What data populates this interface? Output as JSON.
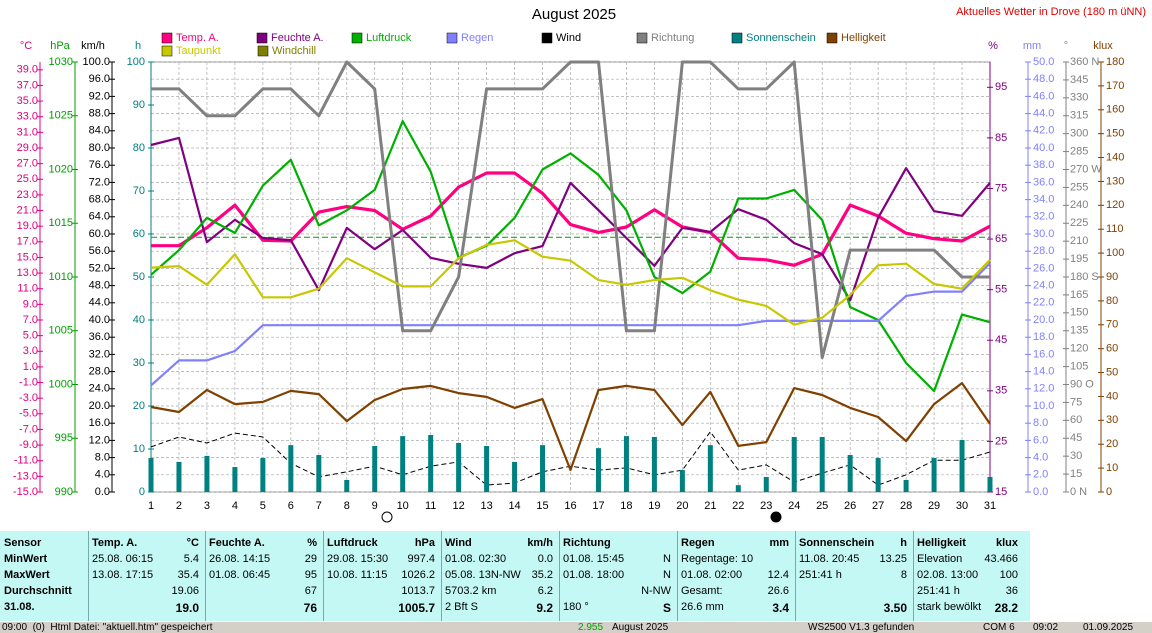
{
  "chart_data": {
    "type": "line",
    "title": "August 2025",
    "subtitle": "Aktuelles Wetter in Drove (180 m üNN)",
    "x": [
      1,
      2,
      3,
      4,
      5,
      6,
      7,
      8,
      9,
      10,
      11,
      12,
      13,
      14,
      15,
      16,
      17,
      18,
      19,
      20,
      21,
      22,
      23,
      24,
      25,
      26,
      27,
      28,
      29,
      30,
      31
    ],
    "xlim": [
      1,
      31
    ],
    "grid": true,
    "axes": [
      {
        "label": "°C",
        "color": "#e0007f",
        "lim": [
          -15,
          40
        ],
        "ticks": [
          {
            "value": 39,
            "label": "39.0"
          },
          {
            "value": 37,
            "label": "37.0"
          },
          {
            "value": 35,
            "label": "35.0"
          },
          {
            "value": 33,
            "label": "33.0"
          },
          {
            "value": 31,
            "label": "31.0"
          },
          {
            "value": 29,
            "label": "29.0"
          },
          {
            "value": 27,
            "label": "27.0"
          },
          {
            "value": 25,
            "label": "25.0"
          },
          {
            "value": 23,
            "label": "23.0"
          },
          {
            "value": 21,
            "label": "21.0"
          },
          {
            "value": 19,
            "label": "19.0"
          },
          {
            "value": 17,
            "label": "17.0"
          },
          {
            "value": 15,
            "label": "15.0"
          },
          {
            "value": 13,
            "label": "13.0"
          },
          {
            "value": 11,
            "label": "11.0"
          },
          {
            "value": 9,
            "label": "9.0"
          },
          {
            "value": 7,
            "label": "7.0"
          },
          {
            "value": 5,
            "label": "5.0"
          },
          {
            "value": 3,
            "label": "3.0"
          },
          {
            "value": 1,
            "label": "1.0"
          },
          {
            "value": -1,
            "label": "-1.0"
          },
          {
            "value": -3,
            "label": "-3.0"
          },
          {
            "value": -5,
            "label": "-5.0"
          },
          {
            "value": -7,
            "label": "-7.0"
          },
          {
            "value": -9,
            "label": "-9.0"
          },
          {
            "value": -11,
            "label": "-11.0"
          },
          {
            "value": -13,
            "label": "-13.0"
          },
          {
            "value": -15,
            "label": "-15.0"
          }
        ]
      },
      {
        "label": "hPa",
        "color": "#00a000",
        "lim": [
          990,
          1030
        ],
        "ticks": [
          1030,
          1025,
          1020,
          1015,
          1010,
          1005,
          1000,
          995,
          990
        ]
      },
      {
        "label": "km/h",
        "color": "#000000",
        "lim": [
          0,
          100
        ],
        "ticks": [
          {
            "value": 100,
            "label": "100.0"
          },
          {
            "value": 96,
            "label": "96.0"
          },
          {
            "value": 92,
            "label": "92.0"
          },
          {
            "value": 88,
            "label": "88.0"
          },
          {
            "value": 84,
            "label": "84.0"
          },
          {
            "value": 80,
            "label": "80.0"
          },
          {
            "value": 76,
            "label": "76.0"
          },
          {
            "value": 72,
            "label": "72.0"
          },
          {
            "value": 68,
            "label": "68.0"
          },
          {
            "value": 64,
            "label": "64.0"
          },
          {
            "value": 60,
            "label": "60.0"
          },
          {
            "value": 56,
            "label": "56.0"
          },
          {
            "value": 52,
            "label": "52.0"
          },
          {
            "value": 48,
            "label": "48.0"
          },
          {
            "value": 44,
            "label": "44.0"
          },
          {
            "value": 40,
            "label": "40.0"
          },
          {
            "value": 36,
            "label": "36.0"
          },
          {
            "value": 32,
            "label": "32.0"
          },
          {
            "value": 28,
            "label": "28.0"
          },
          {
            "value": 24,
            "label": "24.0"
          },
          {
            "value": 20,
            "label": "20.0"
          },
          {
            "value": 16,
            "label": "16.0"
          },
          {
            "value": 12,
            "label": "12.0"
          },
          {
            "value": 8,
            "label": "8.0"
          },
          {
            "value": 4,
            "label": "4.0"
          },
          {
            "value": 0,
            "label": "0.0"
          }
        ]
      },
      {
        "label": "h",
        "color": "#008080",
        "lim": [
          0,
          100
        ],
        "ticks": [
          100,
          90,
          80,
          70,
          60,
          50,
          40,
          30,
          20,
          10,
          0
        ]
      },
      {
        "label": "%",
        "color": "#800080",
        "lim": [
          15,
          100
        ],
        "ticks": [
          95,
          85,
          75,
          65,
          55,
          45,
          35,
          25,
          15
        ]
      },
      {
        "label": "mm",
        "color": "#8080ff",
        "lim": [
          0,
          50
        ],
        "ticks": [
          {
            "value": 50,
            "label": "50.0"
          },
          {
            "value": 48,
            "label": "48.0"
          },
          {
            "value": 46,
            "label": "46.0"
          },
          {
            "value": 44,
            "label": "44.0"
          },
          {
            "value": 42,
            "label": "42.0"
          },
          {
            "value": 40,
            "label": "40.0"
          },
          {
            "value": 38,
            "label": "38.0"
          },
          {
            "value": 36,
            "label": "36.0"
          },
          {
            "value": 34,
            "label": "34.0"
          },
          {
            "value": 32,
            "label": "32.0"
          },
          {
            "value": 30,
            "label": "30.0"
          },
          {
            "value": 28,
            "label": "28.0"
          },
          {
            "value": 26,
            "label": "26.0"
          },
          {
            "value": 24,
            "label": "24.0"
          },
          {
            "value": 22,
            "label": "22.0"
          },
          {
            "value": 20,
            "label": "20.0"
          },
          {
            "value": 18,
            "label": "18.0"
          },
          {
            "value": 16,
            "label": "16.0"
          },
          {
            "value": 14,
            "label": "14.0"
          },
          {
            "value": 12,
            "label": "12.0"
          },
          {
            "value": 10,
            "label": "10.0"
          },
          {
            "value": 8,
            "label": "8.0"
          },
          {
            "value": 6,
            "label": "6.0"
          },
          {
            "value": 4,
            "label": "4.0"
          },
          {
            "value": 2,
            "label": "2.0"
          },
          {
            "value": 0,
            "label": "0.0"
          }
        ]
      },
      {
        "label": "°",
        "color": "#808080",
        "lim": [
          0,
          360
        ],
        "ticks": [
          {
            "value": 360,
            "label": "360 N"
          },
          345,
          330,
          315,
          300,
          285,
          {
            "value": 270,
            "label": "270 W"
          },
          255,
          240,
          225,
          210,
          195,
          {
            "value": 180,
            "label": "180 S"
          },
          165,
          150,
          135,
          120,
          105,
          {
            "value": 90,
            "label": "90 O"
          },
          75,
          60,
          45,
          30,
          15,
          {
            "value": 0,
            "label": "0 N"
          }
        ]
      },
      {
        "label": "klux",
        "color": "#804000",
        "lim": [
          0,
          180
        ],
        "ticks": [
          180,
          170,
          160,
          150,
          140,
          130,
          120,
          110,
          100,
          90,
          80,
          70,
          60,
          50,
          40,
          30,
          20,
          10,
          0
        ]
      }
    ],
    "series": [
      {
        "name": "Temp. A.",
        "color": "#ff0080",
        "axis": 0,
        "style": "line",
        "values": [
          16.5,
          16.5,
          18.8,
          21.7,
          17.2,
          17.1,
          20.8,
          21.5,
          21.0,
          18.6,
          20.3,
          24.0,
          25.8,
          25.8,
          23.2,
          19.2,
          18.2,
          18.9,
          21.1,
          18.9,
          18.2,
          14.9,
          14.7,
          14.0,
          15.4,
          21.7,
          20.3,
          18.1,
          17.4,
          17.1,
          19.0
        ]
      },
      {
        "name": "Feuchte A.",
        "color": "#800080",
        "axis": 4,
        "style": "line",
        "values": [
          83.6,
          85.0,
          64.4,
          68.8,
          65.2,
          64.8,
          54.9,
          67.2,
          63.0,
          66.8,
          61.3,
          60.1,
          59.3,
          62.2,
          63.6,
          76.1,
          70.7,
          65.2,
          59.7,
          67.2,
          66.4,
          70.9,
          68.8,
          64.2,
          62.0,
          52.9,
          69.2,
          79.0,
          70.5,
          69.6,
          76.1
        ]
      },
      {
        "name": "Luftdruck",
        "color": "#00b000",
        "axis": 1,
        "style": "line",
        "values": [
          1010.2,
          1012.5,
          1015.5,
          1014.1,
          1018.5,
          1020.9,
          1014.8,
          1016.2,
          1018.1,
          1024.5,
          1019.8,
          1011.8,
          1012.9,
          1015.5,
          1020.0,
          1021.5,
          1019.5,
          1016.2,
          1010.0,
          1008.5,
          1010.5,
          1017.3,
          1017.3,
          1018.1,
          1015.3,
          1007.2,
          1006.0,
          1002.0,
          999.4,
          1006.5,
          1005.8
        ]
      },
      {
        "name": "Regen",
        "color": "#8080ff",
        "axis": 5,
        "style": "line",
        "values": [
          12.4,
          15.3,
          15.3,
          16.4,
          19.4,
          19.4,
          19.4,
          19.4,
          19.4,
          19.4,
          19.4,
          19.4,
          19.4,
          19.4,
          19.4,
          19.4,
          19.4,
          19.4,
          19.4,
          19.4,
          19.4,
          19.4,
          19.9,
          19.9,
          19.9,
          19.9,
          19.9,
          22.8,
          23.3,
          23.3,
          26.6
        ]
      },
      {
        "name": "Wind",
        "color": "#000000",
        "axis": 2,
        "style": "dash",
        "values": [
          10.5,
          12.8,
          11.4,
          13.7,
          12.8,
          6.7,
          3.5,
          4.7,
          6.0,
          4.0,
          6.0,
          7.0,
          1.6,
          2.1,
          4.7,
          6.0,
          5.1,
          5.6,
          4.0,
          5.1,
          14.0,
          5.1,
          6.3,
          2.3,
          4.4,
          6.3,
          1.6,
          4.0,
          7.4,
          7.4,
          9.3
        ]
      },
      {
        "name": "Richtung",
        "color": "#808080",
        "axis": 6,
        "style": "line",
        "values": [
          337.5,
          337.5,
          315,
          315,
          337.5,
          337.5,
          315,
          360,
          337.5,
          135,
          135,
          180,
          337.5,
          337.5,
          337.5,
          360,
          360,
          135,
          135,
          360,
          360,
          337.5,
          337.5,
          360,
          112.5,
          202.5,
          202.5,
          202.5,
          202.5,
          180,
          180
        ]
      },
      {
        "name": "Sonnenschein",
        "color": "#008080",
        "axis": 3,
        "style": "bar",
        "values": [
          7.9,
          7.0,
          8.4,
          5.8,
          7.9,
          10.9,
          8.6,
          2.8,
          10.7,
          13.0,
          13.25,
          11.4,
          10.7,
          7.0,
          10.9,
          0,
          10.2,
          13.0,
          12.8,
          5.1,
          10.9,
          1.6,
          3.5,
          12.8,
          12.8,
          8.6,
          7.9,
          2.8,
          7.9,
          12.1,
          3.5
        ]
      },
      {
        "name": "Helligkeit",
        "color": "#804000",
        "axis": 7,
        "style": "line",
        "values": [
          35.6,
          33.5,
          42.7,
          36.8,
          37.7,
          42.3,
          41.0,
          29.7,
          38.5,
          43.1,
          44.4,
          41.4,
          39.8,
          35.2,
          38.9,
          9.2,
          42.7,
          44.4,
          42.7,
          28.0,
          41.9,
          19.3,
          20.9,
          43.5,
          40.6,
          35.2,
          31.4,
          21.3,
          36.8,
          45.6,
          28.5
        ]
      },
      {
        "name": "Taupunkt",
        "color": "#c8c800",
        "axis": 0,
        "style": "line",
        "values": [
          13.7,
          13.9,
          11.5,
          15.4,
          9.9,
          9.9,
          11.0,
          14.9,
          13.1,
          11.3,
          11.3,
          14.9,
          16.6,
          17.2,
          15.1,
          14.6,
          12.1,
          11.5,
          12.1,
          12.4,
          10.8,
          9.6,
          8.8,
          6.4,
          7.3,
          10.2,
          14.0,
          14.2,
          11.6,
          11.0,
          14.7
        ]
      },
      {
        "name": "Windchill",
        "color": "#808000",
        "axis": 0,
        "style": "line",
        "values": [
          null,
          null,
          null,
          null,
          null,
          null,
          null,
          null,
          null,
          null,
          null,
          null,
          null,
          null,
          null,
          null,
          null,
          null,
          null,
          null,
          null,
          null,
          null,
          null,
          null,
          null,
          null,
          null,
          null,
          null,
          null
        ]
      }
    ],
    "reference_lines": [
      {
        "axis": 1,
        "value": 1013.7,
        "color": "#00a000"
      }
    ]
  },
  "table": {
    "header": [
      "Sensor",
      [
        "Temp. A.",
        "°C"
      ],
      [
        "Feuchte A.",
        "%"
      ],
      [
        "Luftdruck",
        "hPa"
      ],
      [
        "Wind",
        "km/h"
      ],
      [
        "Richtung",
        null
      ],
      [
        "Regen",
        "mm"
      ],
      [
        "Sonnenschein",
        "h"
      ],
      [
        "Helligkeit",
        "klux"
      ]
    ],
    "rows": [
      [
        "MinWert",
        [
          "25.08. 06:15",
          "5.4"
        ],
        [
          "26.08. 14:15",
          "29"
        ],
        [
          "29.08. 15:30",
          "997.4"
        ],
        [
          "01.08. 02:30",
          "0.0"
        ],
        [
          "01.08. 15:45",
          "N"
        ],
        [
          "Regentage: 10",
          null
        ],
        [
          "11.08. 20:45",
          "13.25"
        ],
        [
          "Elevation",
          "43.466"
        ]
      ],
      [
        "MaxWert",
        [
          "13.08. 17:15",
          "35.4"
        ],
        [
          "01.08. 06:45",
          "95"
        ],
        [
          "10.08. 11:15",
          "1026.2"
        ],
        [
          "05.08. 13N-NW",
          "35.2"
        ],
        [
          "01.08. 18:00",
          "N"
        ],
        [
          "01.08. 02:00",
          "12.4"
        ],
        [
          "251:41 h",
          "8"
        ],
        [
          "02.08. 13:00",
          "100"
        ]
      ],
      [
        "Durchschnitt",
        [
          null,
          "19.06"
        ],
        [
          null,
          "67"
        ],
        [
          null,
          "1013.7"
        ],
        [
          "5703.2 km",
          "6.2"
        ],
        [
          null,
          "N-NW"
        ],
        [
          "Gesamt:",
          "26.6"
        ],
        [
          null,
          null
        ],
        [
          "251:41 h",
          "36"
        ]
      ],
      [
        "31.08.",
        [
          null,
          "19.0"
        ],
        [
          null,
          "76"
        ],
        [
          null,
          "1005.7"
        ],
        [
          "2 Bft S",
          "9.2"
        ],
        [
          "180 °",
          "S"
        ],
        [
          "26.6 mm",
          "3.4"
        ],
        [
          null,
          "3.50"
        ],
        [
          "stark bewölkt",
          "28.2"
        ]
      ]
    ]
  },
  "status_bar": [
    "09:00  (0)  Html Datei: \"aktuell.htm\" gespeichert",
    "2.955",
    "August 2025",
    "WS2500 V1.3 gefunden",
    "COM 6",
    "09:02",
    "01.09.2025"
  ]
}
